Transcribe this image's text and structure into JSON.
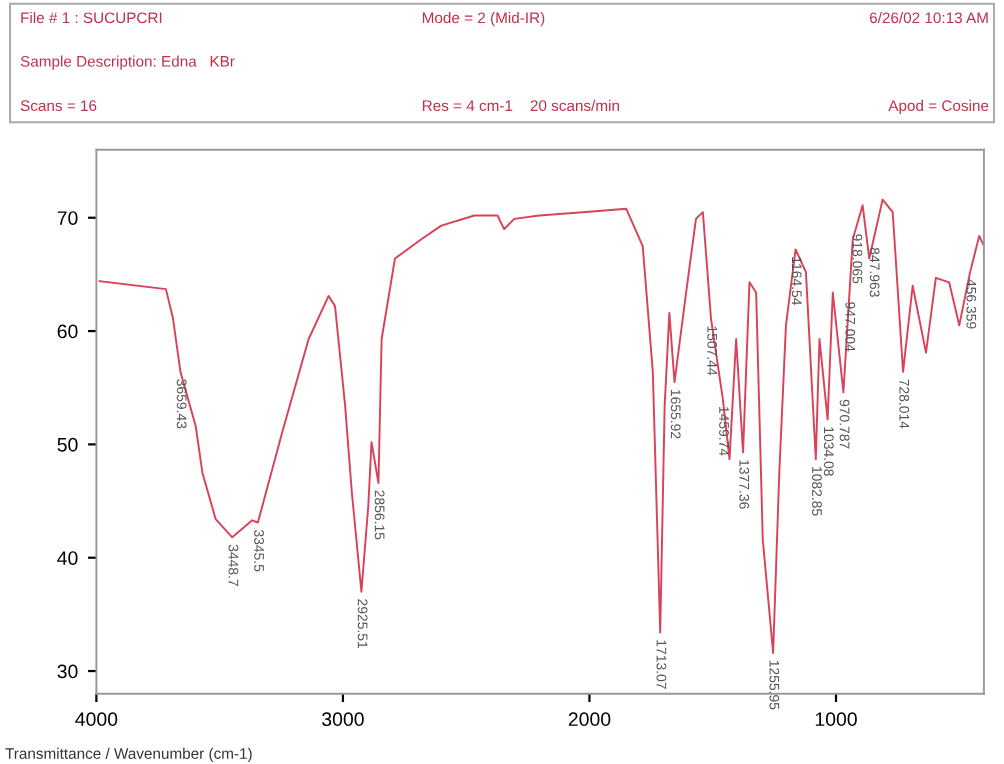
{
  "chart_data": {
    "type": "line",
    "x": [
      3987,
      3718,
      3690,
      3659,
      3597,
      3570,
      3516,
      3449,
      3368,
      3345,
      3247,
      3139,
      3058,
      3032,
      2991,
      2964,
      2925,
      2897,
      2884,
      2856,
      2843,
      2789,
      2682,
      2601,
      2467,
      2373,
      2346,
      2305,
      2203,
      2014,
      1851,
      1784,
      1743,
      1713,
      1695,
      1676,
      1655,
      1608,
      1568,
      1540,
      1507,
      1459,
      1432,
      1405,
      1377,
      1351,
      1324,
      1297,
      1255,
      1230,
      1203,
      1164,
      1122,
      1082,
      1067,
      1034,
      1013,
      970,
      932,
      892,
      865,
      811,
      770,
      728,
      689,
      635,
      595,
      541,
      500,
      456,
      419,
      400
    ],
    "series": [
      {
        "color": "#d8435a",
        "values": [
          64.4,
          63.7,
          61.2,
          56.4,
          51.6,
          47.5,
          43.4,
          41.8,
          43.3,
          43.1,
          51,
          59.3,
          63.1,
          62.2,
          53.4,
          45.8,
          37,
          44.6,
          50.2,
          46.6,
          59.3,
          66.4,
          68.1,
          69.3,
          70.2,
          70.2,
          69,
          69.9,
          70.2,
          70.5,
          70.8,
          67.5,
          56.4,
          33.4,
          53.4,
          61.6,
          55.5,
          63.4,
          69.9,
          70.5,
          61.1,
          54,
          48.7,
          59.3,
          49.3,
          64.3,
          63.4,
          41.6,
          31.6,
          47.5,
          60.5,
          67.2,
          65.2,
          48.7,
          59.3,
          52.2,
          63.4,
          54.6,
          68.1,
          71.1,
          66.4,
          71.6,
          70.5,
          56.4,
          64,
          58.1,
          64.7,
          64.3,
          60.5,
          65.2,
          68.4,
          67.5
        ]
      }
    ],
    "xlim": [
      4000,
      400
    ],
    "ylim": [
      28,
      76
    ],
    "xticks": [
      4000,
      3000,
      2000,
      1000
    ],
    "yticks": [
      30,
      40,
      50,
      60,
      70
    ],
    "grid": false,
    "legend": false,
    "marker": "none",
    "line_style": "solid",
    "annotations": [
      "File # 1 : SUCUPCRI",
      "Mode = 2 (Mid-IR)",
      "6/26/02 10:13 AM",
      "Sample Description: Edna   KBr",
      "Scans = 16",
      "Res = 4 cm-1    20 scans/min",
      "Apod = Cosine",
      "Transmittance / Wavenumber (cm-1)",
      {
        "text": "3659.43",
        "x": 3659,
        "y": 56.4
      },
      {
        "text": "3448.7",
        "x": 3449,
        "y": 41.8
      },
      {
        "text": "3345.5",
        "x": 3345,
        "y": 43.1
      },
      {
        "text": "2925.51",
        "x": 2925,
        "y": 37
      },
      {
        "text": "2856.15",
        "x": 2856,
        "y": 46.6
      },
      {
        "text": "1713.07",
        "x": 1713,
        "y": 33.4
      },
      {
        "text": "1655.92",
        "x": 1655,
        "y": 55.5
      },
      {
        "text": "1507.44",
        "x": 1507,
        "y": 61.1
      },
      {
        "text": "1459.74",
        "x": 1459,
        "y": 54
      },
      {
        "text": "1377.36",
        "x": 1377,
        "y": 49.3
      },
      {
        "text": "1255.95",
        "x": 1255,
        "y": 31.6
      },
      {
        "text": "1164.54",
        "x": 1164,
        "y": 67.2
      },
      {
        "text": "1082.85",
        "x": 1082,
        "y": 48.7
      },
      {
        "text": "1034.08",
        "x": 1034,
        "y": 52.2
      },
      {
        "text": "970.787",
        "x": 970,
        "y": 54.6
      },
      {
        "text": "947.004",
        "x": 947,
        "y": 63.2
      },
      {
        "text": "918.065",
        "x": 918,
        "y": 69.2
      },
      {
        "text": "847.963",
        "x": 848,
        "y": 68
      },
      {
        "text": "728.014",
        "x": 728,
        "y": 56.4
      },
      {
        "text": "456.359",
        "x": 456,
        "y": 65.2
      }
    ]
  }
}
